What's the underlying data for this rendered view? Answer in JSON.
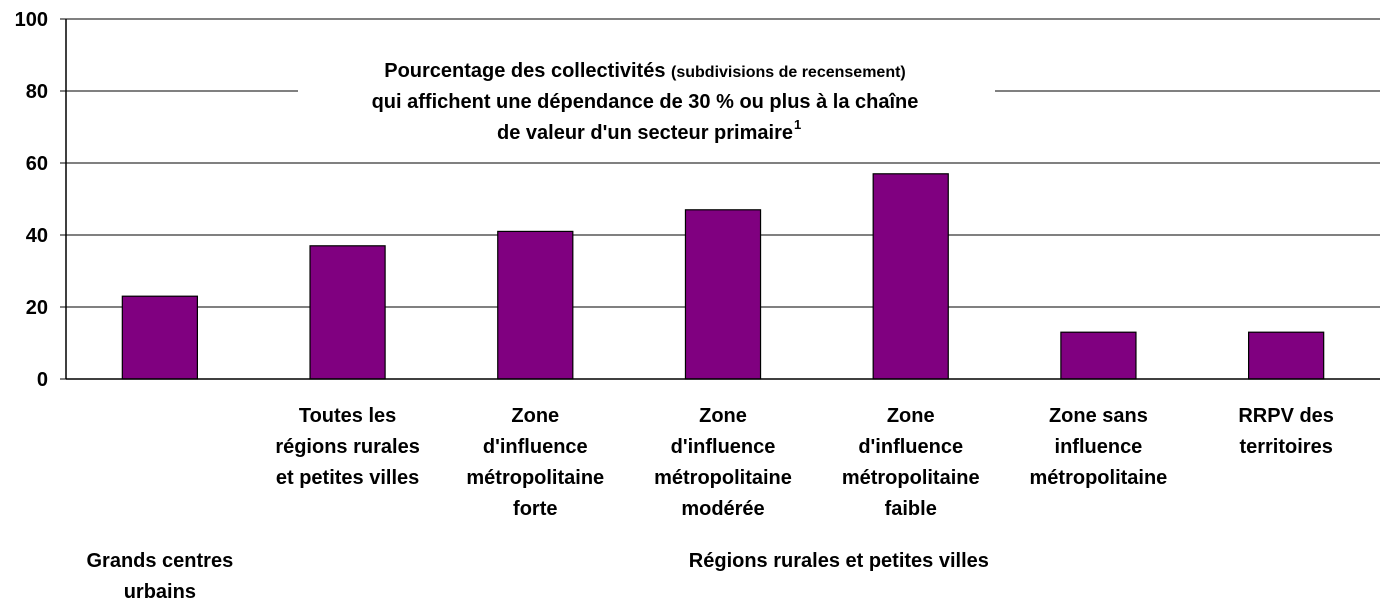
{
  "chart_data": {
    "type": "bar",
    "title": "Pourcentage des collectivités",
    "title_note": "(subdivisions de recensement)",
    "title_rest": "qui affichent une dépendance de 30 % ou plus à la chaîne\nde valeur d'un secteur primaire",
    "footnote_mark": "1",
    "categories": [
      null,
      "Toutes les\nrégions rurales\net petites villes",
      "Zone\nd'influence\nmétropolitaine\nforte",
      "Zone\nd'influence\nmétropolitaine\nmodérée",
      "Zone\nd'influence\nmétropolitaine\nfaible",
      "Zone sans\ninfluence\nmétropolitaine",
      "RRPV des\nterritoires"
    ],
    "groups": [
      {
        "label": "Grands centres\nurbains",
        "count": 1
      },
      {
        "label": "Régions rurales et petites villes",
        "count": 6
      }
    ],
    "values": [
      23,
      37,
      41,
      47,
      57,
      13,
      13
    ],
    "color": "#800080",
    "ylim": [
      0,
      100
    ],
    "yticks": [
      0,
      20,
      40,
      60,
      80,
      100
    ],
    "grid": true
  }
}
